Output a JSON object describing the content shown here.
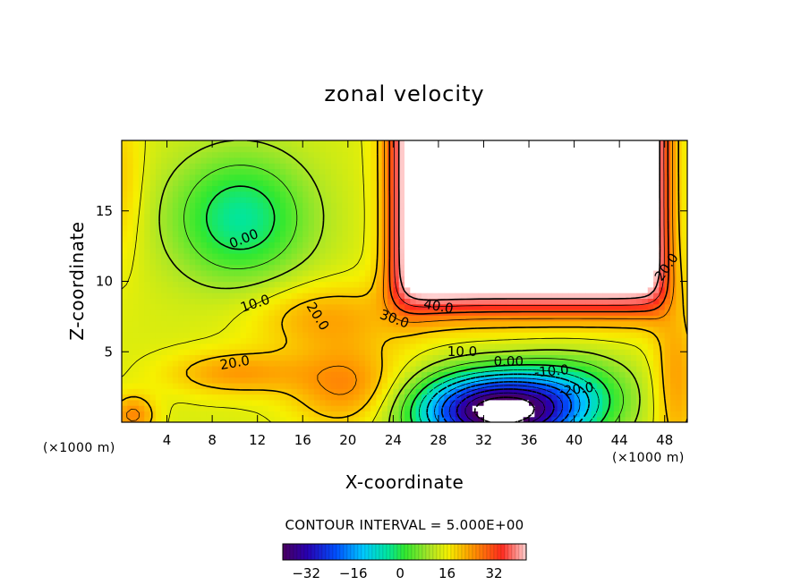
{
  "chart_data": {
    "type": "heatmap",
    "title": "zonal velocity",
    "xlabel": "X-coordinate",
    "ylabel": "Z-coordinate",
    "x_unit": "(×1000 m)",
    "z_unit": "(×1000 m)",
    "xlim": [
      0,
      50
    ],
    "ylim": [
      0,
      20
    ],
    "x_ticks": [
      4,
      8,
      12,
      16,
      20,
      24,
      28,
      32,
      36,
      40,
      44,
      48
    ],
    "x_tick_labels": [
      "4",
      "8",
      "12",
      "16",
      "20",
      "24",
      "28",
      "32",
      "36",
      "40",
      "44",
      "48"
    ],
    "y_ticks": [
      5,
      10,
      15
    ],
    "y_tick_labels": [
      "5",
      "10",
      "15"
    ],
    "contour_interval": 5.0,
    "contour_interval_text": "CONTOUR INTERVAL = 5.000E+00",
    "colorbar": {
      "min": -40,
      "max": 43,
      "ticks": [
        -32,
        -16,
        0,
        16,
        32
      ],
      "tick_labels": [
        "−32",
        "−16",
        "0",
        "16",
        "32"
      ]
    },
    "field_notes": "Approximate u(x,z): high-speed jet above 40 (blank) in upper right, strong negative core below -40 (blank) near x=34, z=1; weak flow ~0 in upper left.",
    "contour_labels": [
      {
        "text": "0.00",
        "x": 10.8,
        "z": 13.0,
        "angle": -22
      },
      {
        "text": "10.0",
        "x": 11.8,
        "z": 8.4,
        "angle": -18
      },
      {
        "text": "20.0",
        "x": 17.3,
        "z": 7.5,
        "angle": 58
      },
      {
        "text": "20.0",
        "x": 10.0,
        "z": 4.2,
        "angle": -10
      },
      {
        "text": "30.0",
        "x": 24.1,
        "z": 7.3,
        "angle": 20
      },
      {
        "text": "40.0",
        "x": 28.0,
        "z": 8.2,
        "angle": 10
      },
      {
        "text": "10.0",
        "x": 30.1,
        "z": 5.0,
        "angle": 0
      },
      {
        "text": "0.00",
        "x": 34.2,
        "z": 4.3,
        "angle": 0
      },
      {
        "text": "-10.0",
        "x": 38.0,
        "z": 3.6,
        "angle": -5
      },
      {
        "text": "-20.0",
        "x": 40.2,
        "z": 2.3,
        "angle": -8
      },
      {
        "text": "20.0",
        "x": 48.2,
        "z": 11.0,
        "angle": -55
      }
    ]
  }
}
